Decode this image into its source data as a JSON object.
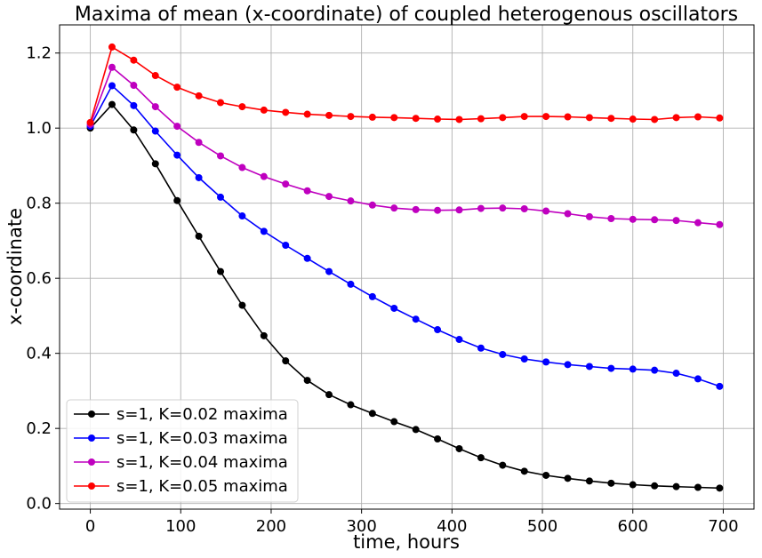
{
  "chart_data": {
    "type": "line",
    "title": "Maxima of mean (x-coordinate) of coupled heterogenous oscillators",
    "xlabel": "time, hours",
    "ylabel": "x-coordinate",
    "xlim": [
      -34,
      734
    ],
    "ylim": [
      -0.015,
      1.275
    ],
    "xticks": [
      0,
      100,
      200,
      300,
      400,
      500,
      600,
      700
    ],
    "xtick_labels": [
      "0",
      "100",
      "200",
      "300",
      "400",
      "500",
      "600",
      "700"
    ],
    "yticks": [
      0.0,
      0.2,
      0.4,
      0.6,
      0.8,
      1.0,
      1.2
    ],
    "ytick_labels": [
      "0.0",
      "0.2",
      "0.4",
      "0.6",
      "0.8",
      "1.0",
      "1.2"
    ],
    "grid": true,
    "legend_position": "lower-left",
    "x": [
      0,
      24,
      48,
      72,
      96,
      120,
      144,
      168,
      192,
      216,
      240,
      264,
      288,
      312,
      336,
      360,
      384,
      408,
      432,
      456,
      480,
      504,
      528,
      552,
      576,
      600,
      624,
      648,
      672,
      696
    ],
    "series": [
      {
        "name": "s=1, K=0.02 maxima",
        "color": "#000000",
        "values": [
          1.0,
          1.063,
          0.995,
          0.905,
          0.807,
          0.712,
          0.618,
          0.528,
          0.447,
          0.38,
          0.328,
          0.29,
          0.263,
          0.24,
          0.218,
          0.197,
          0.172,
          0.146,
          0.122,
          0.102,
          0.086,
          0.075,
          0.067,
          0.06,
          0.054,
          0.05,
          0.047,
          0.045,
          0.043,
          0.041
        ]
      },
      {
        "name": "s=1, K=0.03 maxima",
        "color": "#0000ff",
        "values": [
          1.005,
          1.113,
          1.06,
          0.992,
          0.928,
          0.868,
          0.816,
          0.766,
          0.725,
          0.688,
          0.653,
          0.618,
          0.584,
          0.551,
          0.52,
          0.491,
          0.463,
          0.437,
          0.414,
          0.397,
          0.385,
          0.377,
          0.37,
          0.365,
          0.36,
          0.358,
          0.355,
          0.347,
          0.332,
          0.312
        ]
      },
      {
        "name": "s=1, K=0.04 maxima",
        "color": "#bf00bf",
        "values": [
          1.01,
          1.162,
          1.114,
          1.057,
          1.005,
          0.962,
          0.926,
          0.895,
          0.871,
          0.851,
          0.833,
          0.818,
          0.806,
          0.795,
          0.787,
          0.783,
          0.781,
          0.782,
          0.786,
          0.787,
          0.785,
          0.779,
          0.772,
          0.764,
          0.759,
          0.757,
          0.756,
          0.754,
          0.748,
          0.743
        ]
      },
      {
        "name": "s=1, K=0.05 maxima",
        "color": "#ff0000",
        "values": [
          1.015,
          1.216,
          1.181,
          1.14,
          1.109,
          1.086,
          1.068,
          1.057,
          1.048,
          1.042,
          1.037,
          1.034,
          1.031,
          1.029,
          1.028,
          1.026,
          1.024,
          1.023,
          1.025,
          1.028,
          1.031,
          1.031,
          1.03,
          1.028,
          1.026,
          1.024,
          1.023,
          1.028,
          1.03,
          1.027
        ]
      }
    ]
  }
}
